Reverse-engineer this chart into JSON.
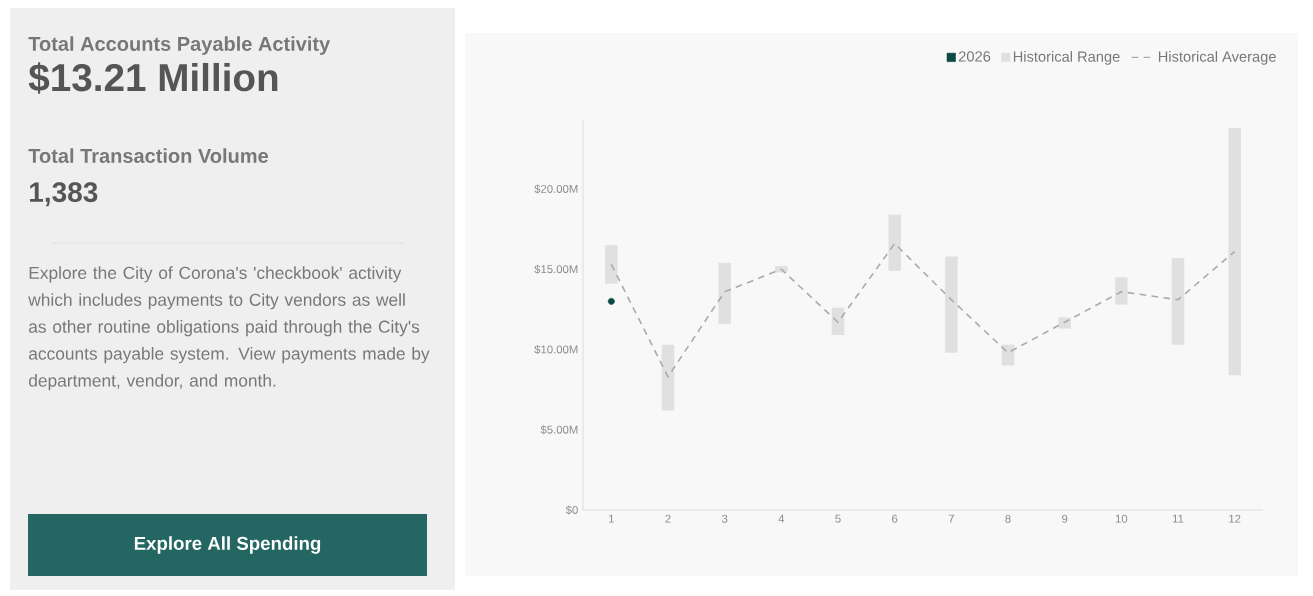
{
  "chart_data": [
    {
      "type": "other",
      "title": "Total Accounts Payable Activity",
      "annotations": [
        "$13.21 Million",
        "Total Transaction Volume",
        "1,383",
        "Explore the City of Corona's 'checkbook' activity which includes payments to City vendors as well as other routine obligations paid through the City's accounts payable system. View payments made by department, vendor, and month.",
        "Explore All Spending"
      ]
    },
    {
      "type": "bar",
      "categories": [
        "1",
        "2",
        "3",
        "4",
        "5",
        "6",
        "7",
        "8",
        "9",
        "10",
        "11",
        "12"
      ],
      "ylim": [
        0,
        24.3
      ],
      "yticks": [
        {
          "value": 0,
          "label": "$0"
        },
        {
          "value": 5,
          "label": "$5.00M"
        },
        {
          "value": 10,
          "label": "$10.00M"
        },
        {
          "value": 15,
          "label": "$15.00M"
        },
        {
          "value": 20,
          "label": "$20.00M"
        }
      ],
      "legend": "top right",
      "series": [
        {
          "name": "2026",
          "type": "scatter",
          "marker": "circle",
          "color": "#0b4a45",
          "values": [
            13.0,
            null,
            null,
            null,
            null,
            null,
            null,
            null,
            null,
            null,
            null,
            null
          ]
        },
        {
          "name": "Historical Range",
          "type": "bar",
          "color": "#e0e0e0",
          "base": [
            14.1,
            6.2,
            11.6,
            14.8,
            10.9,
            14.9,
            9.8,
            9.0,
            11.3,
            12.8,
            10.3,
            8.4
          ],
          "values": [
            2.4,
            4.1,
            3.8,
            0.4,
            1.7,
            3.5,
            6.0,
            1.3,
            0.7,
            1.7,
            5.4,
            15.4
          ]
        },
        {
          "name": "Historical Average",
          "type": "line",
          "line_style": "dashed",
          "color": "#aaaaaa",
          "values": [
            15.3,
            8.3,
            13.6,
            15.0,
            11.7,
            16.6,
            13.1,
            9.8,
            11.7,
            13.6,
            13.1,
            16.1
          ]
        }
      ]
    }
  ]
}
